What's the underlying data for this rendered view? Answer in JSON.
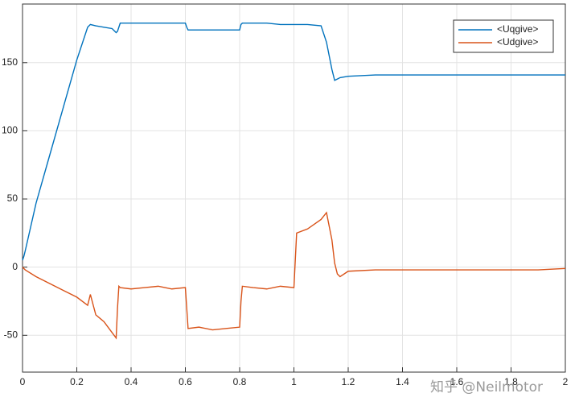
{
  "chart_data": {
    "type": "line",
    "x": [
      0,
      0.005,
      0.01,
      0.05,
      0.1,
      0.15,
      0.2,
      0.24,
      0.25,
      0.27,
      0.3,
      0.33,
      0.345,
      0.35,
      0.355,
      0.36,
      0.4,
      0.45,
      0.5,
      0.55,
      0.6,
      0.605,
      0.61,
      0.65,
      0.7,
      0.75,
      0.8,
      0.805,
      0.81,
      0.85,
      0.9,
      0.95,
      1.0,
      1.005,
      1.01,
      1.05,
      1.1,
      1.12,
      1.14,
      1.15,
      1.16,
      1.17,
      1.2,
      1.3,
      1.4,
      1.5,
      1.6,
      1.7,
      1.8,
      1.9,
      2.0
    ],
    "series": [
      {
        "name": "<Uqgive>",
        "color": "#0072BD",
        "values": [
          5,
          8,
          12,
          47,
          82,
          117,
          152,
          176,
          178,
          177,
          176,
          175,
          172,
          173,
          176,
          179,
          179,
          179,
          179,
          179,
          179,
          176,
          174,
          174,
          174,
          174,
          174,
          178,
          179,
          179,
          179,
          178,
          178,
          178,
          178,
          178,
          177,
          165,
          145,
          137,
          138,
          139,
          140,
          141,
          141,
          141,
          141,
          141,
          141,
          141,
          141
        ]
      },
      {
        "name": "<Udgive>",
        "color": "#D95319",
        "values": [
          0,
          -1,
          -2,
          -7,
          -12,
          -17,
          -22,
          -28,
          -20,
          -35,
          -40,
          -48,
          -52,
          -30,
          -14,
          -15,
          -16,
          -15,
          -14,
          -16,
          -15,
          -30,
          -45,
          -44,
          -46,
          -45,
          -44,
          -25,
          -14,
          -15,
          -16,
          -14,
          -15,
          5,
          25,
          28,
          35,
          40,
          20,
          3,
          -5,
          -7,
          -3,
          -2,
          -2,
          -2,
          -2,
          -2,
          -2,
          -2,
          -1
        ]
      }
    ],
    "xlim": [
      0,
      2
    ],
    "xticks": [
      0,
      0.2,
      0.4,
      0.6,
      0.8,
      1,
      1.2,
      1.4,
      1.6,
      1.8,
      2
    ],
    "ylim": [
      -77,
      193
    ],
    "yticks": [
      -50,
      0,
      50,
      100,
      150
    ],
    "grid": true,
    "legend": "upper-right",
    "watermark": "知乎 @Neilmotor"
  }
}
